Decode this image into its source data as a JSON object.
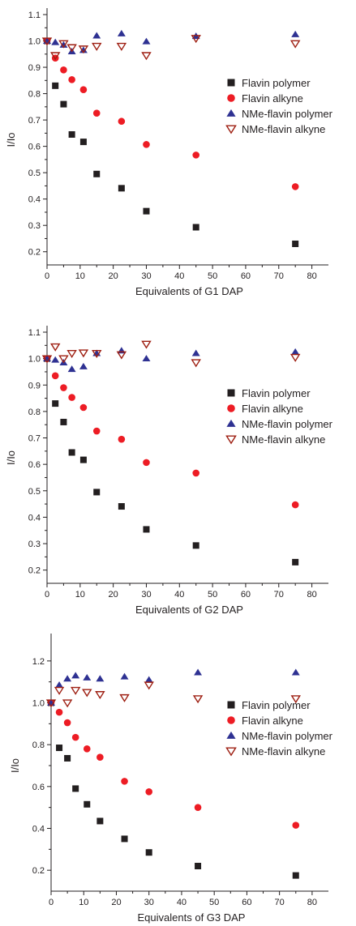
{
  "chart_data": [
    {
      "type": "scatter",
      "xlabel": "Equivalents of G1 DAP",
      "ylabel": "I/Io",
      "xlim": [
        0,
        85
      ],
      "ylim": [
        0.15,
        1.1
      ],
      "xticks": [
        0,
        10,
        20,
        30,
        40,
        50,
        60,
        70,
        80
      ],
      "yticks": [
        0.2,
        0.3,
        0.4,
        0.5,
        0.6,
        0.7,
        0.8,
        0.9,
        1.0,
        1.1
      ],
      "x": [
        0,
        2.5,
        5,
        7.5,
        11,
        15,
        22.5,
        30,
        45,
        75
      ],
      "legend_position": "right",
      "series": [
        {
          "name": "Flavin polymer",
          "marker": "square",
          "color": "#231f20",
          "values": [
            1.0,
            0.83,
            0.76,
            0.645,
            0.617,
            0.495,
            0.441,
            0.354,
            0.293,
            0.23
          ]
        },
        {
          "name": "Flavin alkyne",
          "marker": "circle",
          "color": "#ed1c24",
          "values": [
            1.0,
            0.935,
            0.89,
            0.853,
            0.815,
            0.726,
            0.695,
            0.607,
            0.567,
            0.447
          ]
        },
        {
          "name": "NMe-flavin polymer",
          "marker": "triangle-up",
          "color": "#2e3192",
          "values": [
            1.0,
            0.995,
            0.985,
            0.96,
            0.965,
            1.02,
            1.028,
            0.998,
            1.018,
            1.025
          ]
        },
        {
          "name": "NMe-flavin alkyne",
          "marker": "triangle-down-open",
          "color": "#9e1f12",
          "values": [
            1.0,
            0.945,
            0.99,
            0.975,
            0.97,
            0.98,
            0.98,
            0.945,
            1.01,
            0.99
          ]
        }
      ]
    },
    {
      "type": "scatter",
      "xlabel": "Equivalents of G2 DAP",
      "ylabel": "I/Io",
      "xlim": [
        0,
        85
      ],
      "ylim": [
        0.15,
        1.1
      ],
      "xticks": [
        0,
        10,
        20,
        30,
        40,
        50,
        60,
        70,
        80
      ],
      "yticks": [
        0.2,
        0.3,
        0.4,
        0.5,
        0.6,
        0.7,
        0.8,
        0.9,
        1.0,
        1.1
      ],
      "x": [
        0,
        2.5,
        5,
        7.5,
        11,
        15,
        22.5,
        30,
        45,
        75
      ],
      "legend_position": "right",
      "series": [
        {
          "name": "Flavin polymer",
          "marker": "square",
          "color": "#231f20",
          "values": [
            1.0,
            0.83,
            0.76,
            0.645,
            0.617,
            0.495,
            0.441,
            0.354,
            0.293,
            0.23
          ]
        },
        {
          "name": "Flavin alkyne",
          "marker": "circle",
          "color": "#ed1c24",
          "values": [
            1.0,
            0.935,
            0.89,
            0.853,
            0.815,
            0.726,
            0.695,
            0.607,
            0.567,
            0.447
          ]
        },
        {
          "name": "NMe-flavin polymer",
          "marker": "triangle-up",
          "color": "#2e3192",
          "values": [
            1.0,
            0.995,
            0.985,
            0.96,
            0.97,
            1.02,
            1.03,
            1.0,
            1.02,
            1.025
          ]
        },
        {
          "name": "NMe-flavin alkyne",
          "marker": "triangle-down-open",
          "color": "#9e1f12",
          "values": [
            1.0,
            1.045,
            1.0,
            1.02,
            1.022,
            1.02,
            1.015,
            1.055,
            0.985,
            1.005
          ]
        }
      ]
    },
    {
      "type": "scatter",
      "xlabel": "Equivalents of G3 DAP",
      "ylabel": "I/Io",
      "xlim": [
        0,
        85
      ],
      "ylim": [
        0.1,
        1.3
      ],
      "xticks": [
        0,
        10,
        20,
        30,
        40,
        50,
        60,
        70,
        80
      ],
      "yticks": [
        0.2,
        0.4,
        0.6,
        0.8,
        1.0,
        1.2
      ],
      "x": [
        0,
        2.5,
        5,
        7.5,
        11,
        15,
        22.5,
        30,
        45,
        75
      ],
      "legend_position": "right",
      "series": [
        {
          "name": "Flavin polymer",
          "marker": "square",
          "color": "#231f20",
          "values": [
            1.0,
            0.785,
            0.735,
            0.59,
            0.515,
            0.435,
            0.35,
            0.285,
            0.22,
            0.175
          ]
        },
        {
          "name": "Flavin alkyne",
          "marker": "circle",
          "color": "#ed1c24",
          "values": [
            1.0,
            0.955,
            0.905,
            0.835,
            0.78,
            0.74,
            0.625,
            0.575,
            0.5,
            0.415
          ]
        },
        {
          "name": "NMe-flavin polymer",
          "marker": "triangle-up",
          "color": "#2e3192",
          "values": [
            1.0,
            1.085,
            1.115,
            1.13,
            1.12,
            1.115,
            1.125,
            1.11,
            1.145,
            1.145
          ]
        },
        {
          "name": "NMe-flavin alkyne",
          "marker": "triangle-down-open",
          "color": "#9e1f12",
          "values": [
            1.0,
            1.06,
            1.0,
            1.06,
            1.05,
            1.04,
            1.025,
            1.085,
            1.02,
            1.02
          ]
        }
      ]
    }
  ]
}
